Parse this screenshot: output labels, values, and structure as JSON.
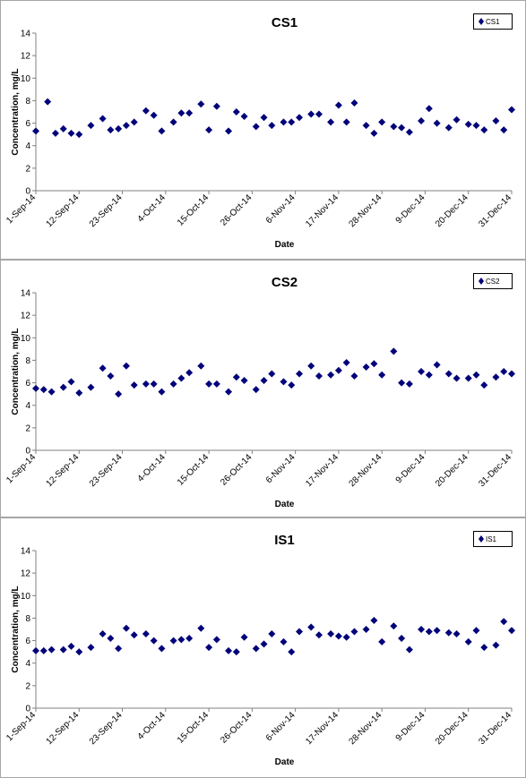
{
  "colors": {
    "marker": "#00007a",
    "axis": "#808080",
    "frame": "#a6a6a6",
    "text": "#000000"
  },
  "chart_data": [
    {
      "type": "scatter",
      "title": "CS1",
      "xlabel": "Date",
      "ylabel": "Concentration, mg/L",
      "legend": "CS1",
      "legend_position": "top-right",
      "grid": false,
      "ylim": [
        0,
        14
      ],
      "yticks": [
        "0",
        "2",
        "4",
        "6",
        "8",
        "10",
        "12",
        "14"
      ],
      "xlim": [
        "2014-09-01",
        "2014-12-31"
      ],
      "xticks": [
        "1-Sep-14",
        "12-Sep-14",
        "23-Sep-14",
        "4-Oct-14",
        "15-Oct-14",
        "26-Oct-14",
        "6-Nov-14",
        "17-Nov-14",
        "28-Nov-14",
        "9-Dec-14",
        "20-Dec-14",
        "31-Dec-14"
      ],
      "points": [
        [
          "2014-09-01",
          5.3
        ],
        [
          "2014-09-04",
          7.9
        ],
        [
          "2014-09-06",
          5.1
        ],
        [
          "2014-09-08",
          5.5
        ],
        [
          "2014-09-10",
          5.1
        ],
        [
          "2014-09-12",
          5.0
        ],
        [
          "2014-09-15",
          5.8
        ],
        [
          "2014-09-18",
          6.4
        ],
        [
          "2014-09-20",
          5.4
        ],
        [
          "2014-09-22",
          5.5
        ],
        [
          "2014-09-24",
          5.8
        ],
        [
          "2014-09-26",
          6.1
        ],
        [
          "2014-09-29",
          7.1
        ],
        [
          "2014-10-01",
          6.7
        ],
        [
          "2014-10-03",
          5.3
        ],
        [
          "2014-10-06",
          6.1
        ],
        [
          "2014-10-08",
          6.9
        ],
        [
          "2014-10-10",
          6.9
        ],
        [
          "2014-10-13",
          7.7
        ],
        [
          "2014-10-15",
          5.4
        ],
        [
          "2014-10-17",
          7.5
        ],
        [
          "2014-10-20",
          5.3
        ],
        [
          "2014-10-22",
          7.0
        ],
        [
          "2014-10-24",
          6.6
        ],
        [
          "2014-10-27",
          5.7
        ],
        [
          "2014-10-29",
          6.5
        ],
        [
          "2014-10-31",
          5.8
        ],
        [
          "2014-11-03",
          6.1
        ],
        [
          "2014-11-05",
          6.1
        ],
        [
          "2014-11-07",
          6.5
        ],
        [
          "2014-11-10",
          6.8
        ],
        [
          "2014-11-12",
          6.8
        ],
        [
          "2014-11-15",
          6.1
        ],
        [
          "2014-11-17",
          7.6
        ],
        [
          "2014-11-19",
          6.1
        ],
        [
          "2014-11-21",
          7.8
        ],
        [
          "2014-11-24",
          5.8
        ],
        [
          "2014-11-26",
          5.1
        ],
        [
          "2014-11-28",
          6.1
        ],
        [
          "2014-12-01",
          5.7
        ],
        [
          "2014-12-03",
          5.6
        ],
        [
          "2014-12-05",
          5.2
        ],
        [
          "2014-12-08",
          6.2
        ],
        [
          "2014-12-10",
          7.3
        ],
        [
          "2014-12-12",
          6.0
        ],
        [
          "2014-12-15",
          5.6
        ],
        [
          "2014-12-17",
          6.3
        ],
        [
          "2014-12-20",
          5.9
        ],
        [
          "2014-12-22",
          5.8
        ],
        [
          "2014-12-24",
          5.4
        ],
        [
          "2014-12-27",
          6.2
        ],
        [
          "2014-12-29",
          5.4
        ],
        [
          "2014-12-31",
          7.2
        ]
      ]
    },
    {
      "type": "scatter",
      "title": "CS2",
      "xlabel": "Date",
      "ylabel": "Concentration, mg/L",
      "legend": "CS2",
      "legend_position": "top-right",
      "grid": false,
      "ylim": [
        0,
        14
      ],
      "yticks": [
        "0",
        "2",
        "4",
        "6",
        "8",
        "10",
        "12",
        "14"
      ],
      "xlim": [
        "2014-09-01",
        "2014-12-31"
      ],
      "xticks": [
        "1-Sep-14",
        "12-Sep-14",
        "23-Sep-14",
        "4-Oct-14",
        "15-Oct-14",
        "26-Oct-14",
        "6-Nov-14",
        "17-Nov-14",
        "28-Nov-14",
        "9-Dec-14",
        "20-Dec-14",
        "31-Dec-14"
      ],
      "points": [
        [
          "2014-09-01",
          5.5
        ],
        [
          "2014-09-03",
          5.4
        ],
        [
          "2014-09-05",
          5.2
        ],
        [
          "2014-09-08",
          5.6
        ],
        [
          "2014-09-10",
          6.1
        ],
        [
          "2014-09-12",
          5.1
        ],
        [
          "2014-09-15",
          5.6
        ],
        [
          "2014-09-18",
          7.3
        ],
        [
          "2014-09-20",
          6.6
        ],
        [
          "2014-09-22",
          5.0
        ],
        [
          "2014-09-24",
          7.5
        ],
        [
          "2014-09-26",
          5.8
        ],
        [
          "2014-09-29",
          5.9
        ],
        [
          "2014-10-01",
          5.9
        ],
        [
          "2014-10-03",
          5.2
        ],
        [
          "2014-10-06",
          5.9
        ],
        [
          "2014-10-08",
          6.4
        ],
        [
          "2014-10-10",
          6.9
        ],
        [
          "2014-10-13",
          7.5
        ],
        [
          "2014-10-15",
          5.9
        ],
        [
          "2014-10-17",
          5.9
        ],
        [
          "2014-10-20",
          5.2
        ],
        [
          "2014-10-22",
          6.5
        ],
        [
          "2014-10-24",
          6.2
        ],
        [
          "2014-10-27",
          5.4
        ],
        [
          "2014-10-29",
          6.2
        ],
        [
          "2014-10-31",
          6.8
        ],
        [
          "2014-11-03",
          6.1
        ],
        [
          "2014-11-05",
          5.8
        ],
        [
          "2014-11-07",
          6.8
        ],
        [
          "2014-11-10",
          7.5
        ],
        [
          "2014-11-12",
          6.6
        ],
        [
          "2014-11-15",
          6.7
        ],
        [
          "2014-11-17",
          7.1
        ],
        [
          "2014-11-19",
          7.8
        ],
        [
          "2014-11-21",
          6.6
        ],
        [
          "2014-11-24",
          7.4
        ],
        [
          "2014-11-26",
          7.7
        ],
        [
          "2014-11-28",
          6.7
        ],
        [
          "2014-12-01",
          8.8
        ],
        [
          "2014-12-03",
          6.0
        ],
        [
          "2014-12-05",
          5.9
        ],
        [
          "2014-12-08",
          7.0
        ],
        [
          "2014-12-10",
          6.7
        ],
        [
          "2014-12-12",
          7.6
        ],
        [
          "2014-12-15",
          6.8
        ],
        [
          "2014-12-17",
          6.4
        ],
        [
          "2014-12-20",
          6.4
        ],
        [
          "2014-12-22",
          6.7
        ],
        [
          "2014-12-24",
          5.8
        ],
        [
          "2014-12-27",
          6.5
        ],
        [
          "2014-12-29",
          7.0
        ],
        [
          "2014-12-31",
          6.8
        ]
      ]
    },
    {
      "type": "scatter",
      "title": "IS1",
      "xlabel": "Date",
      "ylabel": "Concentration, mg/L",
      "legend": "IS1",
      "legend_position": "top-right",
      "grid": false,
      "ylim": [
        0,
        14
      ],
      "yticks": [
        "0",
        "2",
        "4",
        "6",
        "8",
        "10",
        "12",
        "14"
      ],
      "xlim": [
        "2014-09-01",
        "2014-12-31"
      ],
      "xticks": [
        "1-Sep-14",
        "12-Sep-14",
        "23-Sep-14",
        "4-Oct-14",
        "15-Oct-14",
        "26-Oct-14",
        "6-Nov-14",
        "17-Nov-14",
        "28-Nov-14",
        "9-Dec-14",
        "20-Dec-14",
        "31-Dec-14"
      ],
      "points": [
        [
          "2014-09-01",
          5.1
        ],
        [
          "2014-09-03",
          5.1
        ],
        [
          "2014-09-05",
          5.2
        ],
        [
          "2014-09-08",
          5.2
        ],
        [
          "2014-09-10",
          5.5
        ],
        [
          "2014-09-12",
          5.0
        ],
        [
          "2014-09-15",
          5.4
        ],
        [
          "2014-09-18",
          6.6
        ],
        [
          "2014-09-20",
          6.2
        ],
        [
          "2014-09-22",
          5.3
        ],
        [
          "2014-09-24",
          7.1
        ],
        [
          "2014-09-26",
          6.5
        ],
        [
          "2014-09-29",
          6.6
        ],
        [
          "2014-10-01",
          6.0
        ],
        [
          "2014-10-03",
          5.3
        ],
        [
          "2014-10-06",
          6.0
        ],
        [
          "2014-10-08",
          6.1
        ],
        [
          "2014-10-10",
          6.2
        ],
        [
          "2014-10-13",
          7.1
        ],
        [
          "2014-10-15",
          5.4
        ],
        [
          "2014-10-17",
          6.1
        ],
        [
          "2014-10-20",
          5.1
        ],
        [
          "2014-10-22",
          5.0
        ],
        [
          "2014-10-24",
          6.3
        ],
        [
          "2014-10-27",
          5.3
        ],
        [
          "2014-10-29",
          5.7
        ],
        [
          "2014-10-31",
          6.6
        ],
        [
          "2014-11-03",
          5.9
        ],
        [
          "2014-11-05",
          5.0
        ],
        [
          "2014-11-07",
          6.8
        ],
        [
          "2014-11-10",
          7.2
        ],
        [
          "2014-11-12",
          6.5
        ],
        [
          "2014-11-15",
          6.6
        ],
        [
          "2014-11-17",
          6.4
        ],
        [
          "2014-11-19",
          6.3
        ],
        [
          "2014-11-21",
          6.8
        ],
        [
          "2014-11-24",
          7.0
        ],
        [
          "2014-11-26",
          7.8
        ],
        [
          "2014-11-28",
          5.9
        ],
        [
          "2014-12-01",
          7.3
        ],
        [
          "2014-12-03",
          6.2
        ],
        [
          "2014-12-05",
          5.2
        ],
        [
          "2014-12-08",
          7.0
        ],
        [
          "2014-12-10",
          6.8
        ],
        [
          "2014-12-12",
          6.9
        ],
        [
          "2014-12-15",
          6.7
        ],
        [
          "2014-12-17",
          6.6
        ],
        [
          "2014-12-20",
          5.9
        ],
        [
          "2014-12-22",
          6.9
        ],
        [
          "2014-12-24",
          5.4
        ],
        [
          "2014-12-27",
          5.6
        ],
        [
          "2014-12-29",
          7.7
        ],
        [
          "2014-12-31",
          6.9
        ]
      ]
    }
  ]
}
